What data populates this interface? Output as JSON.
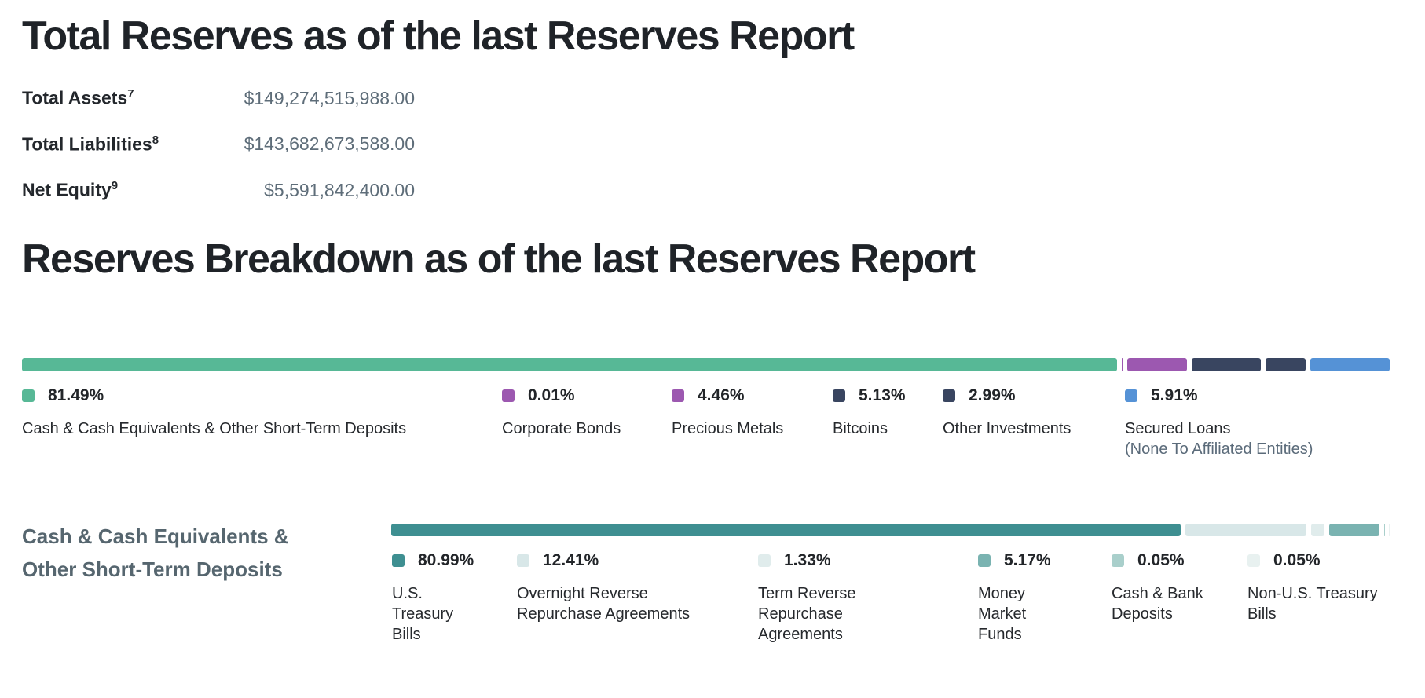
{
  "total_reserves": {
    "title": "Total Reserves as of the last Reserves Report",
    "rows": [
      {
        "label": "Total Assets",
        "footnote": "7",
        "value": "$149,274,515,988.00"
      },
      {
        "label": "Total Liabilities",
        "footnote": "8",
        "value": "$143,682,673,588.00"
      },
      {
        "label": "Net Equity",
        "footnote": "9",
        "value": "$5,591,842,400.00"
      }
    ]
  },
  "breakdown": {
    "title": "Reserves Breakdown as of the last Reserves Report"
  },
  "cash_section": {
    "label_line1": "Cash & Cash Equivalents &",
    "label_line2": "Other Short-Term Deposits"
  },
  "chart_data": [
    {
      "type": "bar",
      "variant": "stacked-horizontal",
      "title": "Reserves Breakdown as of the last Reserves Report",
      "unit": "percent",
      "total": 100,
      "legend_position": "below",
      "series": [
        {
          "name": "Cash & Cash Equivalents & Other Short-Term Deposits",
          "value": 81.49,
          "color": "#57b896"
        },
        {
          "name": "Corporate Bonds",
          "value": 0.01,
          "color": "#9c58b0"
        },
        {
          "name": "Precious Metals",
          "value": 4.46,
          "color": "#9c58b0"
        },
        {
          "name": "Bitcoins",
          "value": 5.13,
          "color": "#394560"
        },
        {
          "name": "Other Investments",
          "value": 2.99,
          "color": "#394560"
        },
        {
          "name": "Secured Loans",
          "note": "(None To Affiliated Entities)",
          "value": 5.91,
          "color": "#5592d6"
        }
      ]
    },
    {
      "type": "bar",
      "variant": "stacked-horizontal",
      "title": "Cash & Cash Equivalents & Other Short-Term Deposits",
      "unit": "percent",
      "total": 100,
      "legend_position": "below",
      "series": [
        {
          "name": "U.S. Treasury Bills",
          "value": 80.99,
          "color": "#3e8f91"
        },
        {
          "name": "Overnight Reverse Repurchase Agreements",
          "value": 12.41,
          "color": "#d8e7e8"
        },
        {
          "name": "Term Reverse Repurchase Agreements",
          "value": 1.33,
          "color": "#e0ecec"
        },
        {
          "name": "Money Market Funds",
          "value": 5.17,
          "color": "#7ab3b1"
        },
        {
          "name": "Cash & Bank Deposits",
          "value": 0.05,
          "color": "#a9cfcb"
        },
        {
          "name": "Non-U.S. Treasury Bills",
          "value": 0.05,
          "color": "#e8f1f0"
        }
      ]
    }
  ]
}
